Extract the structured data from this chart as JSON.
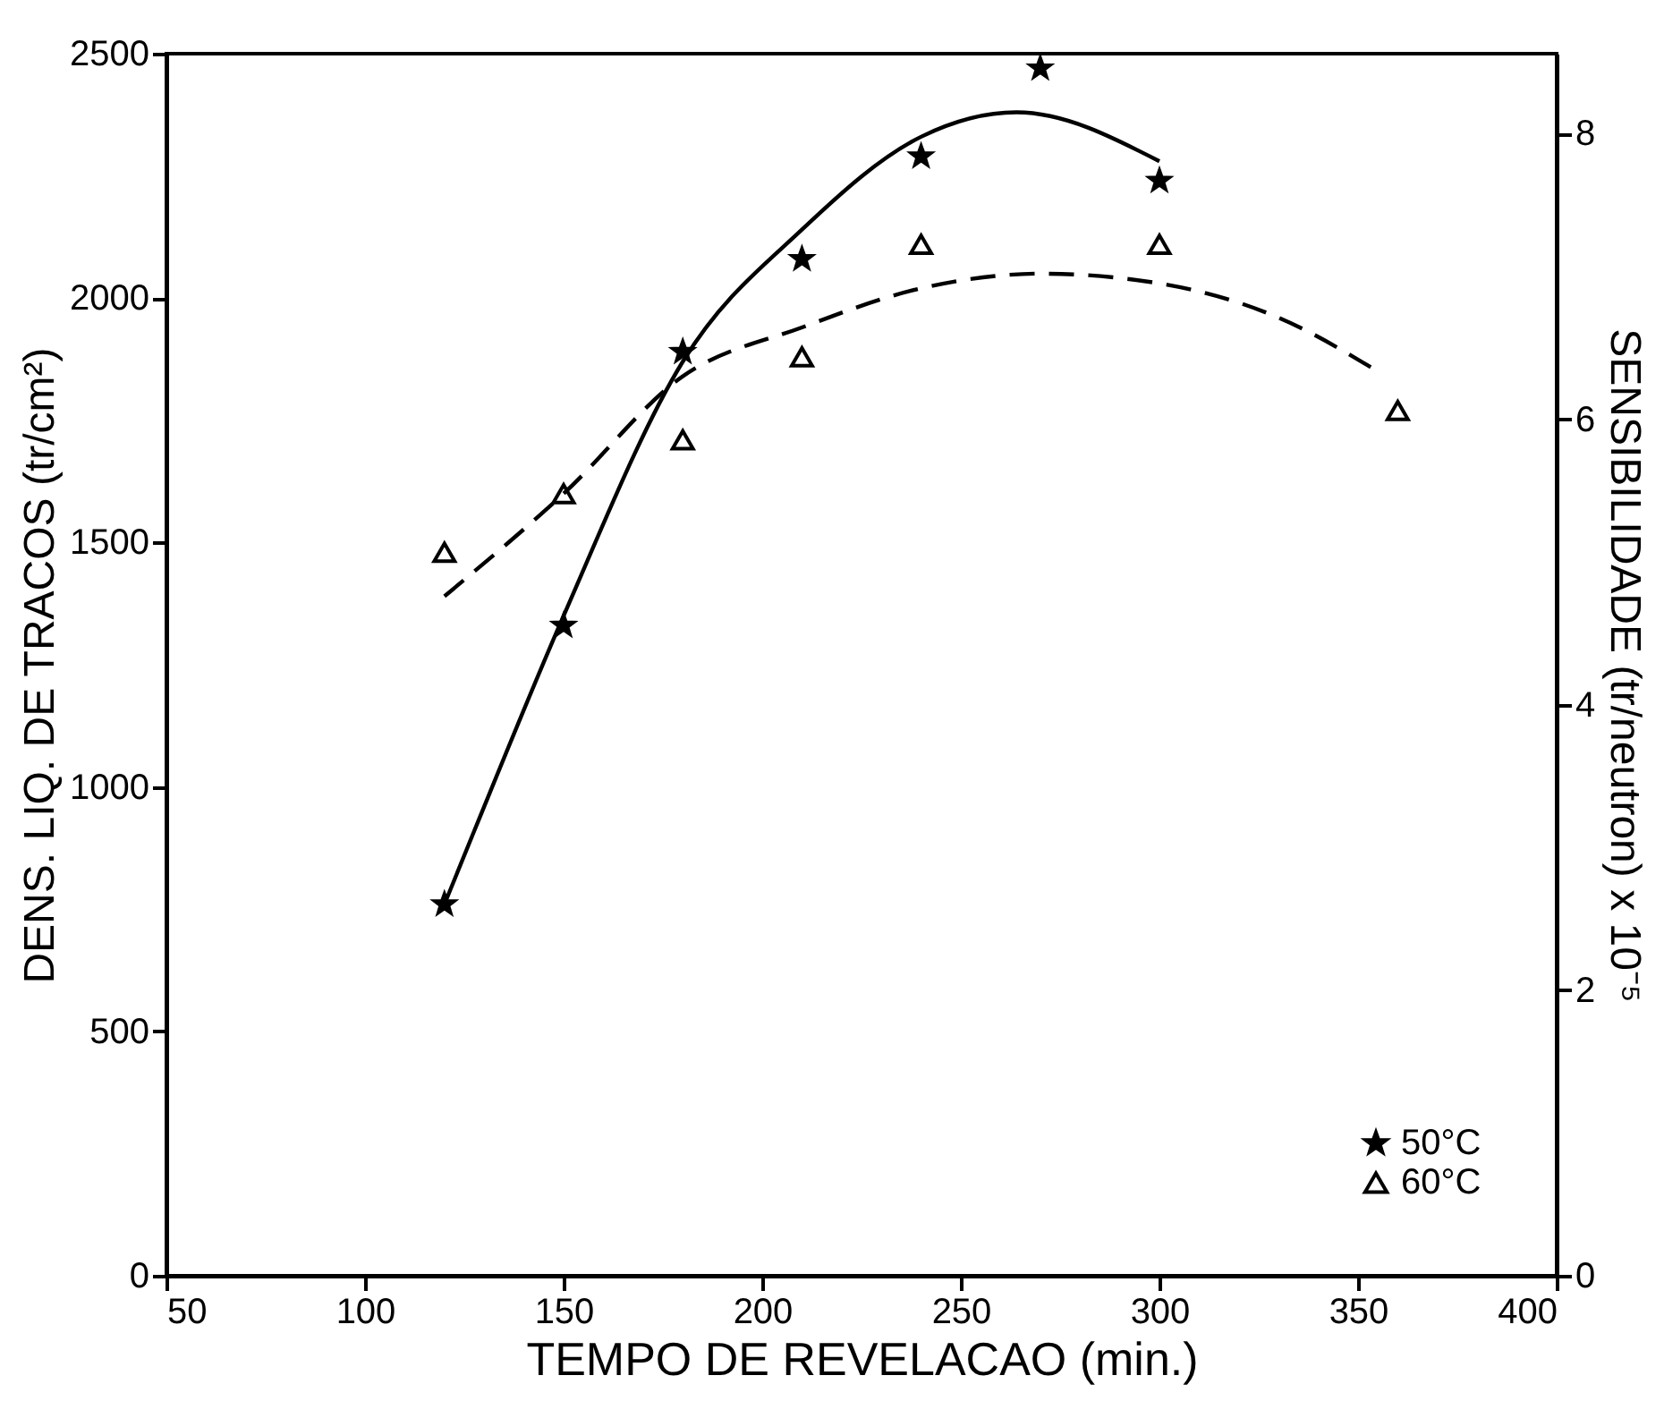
{
  "chart_data": {
    "type": "scatter",
    "xlabel": "TEMPO DE REVELACAO (min.)",
    "ylabel": "DENS. LIQ. DE TRACOS (tr/cm²)",
    "y2label": "SENSIBILIDADE (tr/neutron) x 10⁻⁵",
    "xlim": [
      50,
      400
    ],
    "xticks": [
      50,
      100,
      150,
      200,
      250,
      300,
      350,
      400
    ],
    "ylim": [
      0,
      2500
    ],
    "yticks": [
      0,
      500,
      1000,
      1500,
      2000,
      2500
    ],
    "y2lim": [
      0,
      8.56
    ],
    "y2ticks": [
      0,
      2,
      4,
      6,
      8
    ],
    "grid": false,
    "legend": "bottom right",
    "series": [
      {
        "name": "50°C",
        "marker": "star",
        "color": "#000000",
        "x": [
          120,
          150,
          180,
          210,
          240,
          270,
          300
        ],
        "values": [
          760,
          1330,
          1890,
          2080,
          2290,
          2470,
          2240
        ]
      },
      {
        "name": "60°C",
        "marker": "triangle",
        "color": "#000000",
        "x": [
          120,
          150,
          180,
          210,
          240,
          300,
          360
        ],
        "values": [
          1480,
          1600,
          1710,
          1880,
          2110,
          2110,
          1770
        ]
      },
      {
        "type": "line",
        "line_style": "solid",
        "marker": "none",
        "color": "#000000",
        "x": [
          120,
          127.5,
          150,
          180,
          210,
          240,
          264,
          300
        ],
        "values": [
          760,
          910,
          1350,
          1870,
          2140,
          2330,
          2380,
          2280
        ]
      },
      {
        "type": "line",
        "line_style": "dashed",
        "marker": "none",
        "color": "#000000",
        "x": [
          120,
          150,
          180,
          210,
          240,
          270,
          300,
          330,
          355
        ],
        "values": [
          1390,
          1600,
          1840,
          1940,
          2020,
          2050,
          2030,
          1960,
          1850
        ]
      }
    ]
  }
}
